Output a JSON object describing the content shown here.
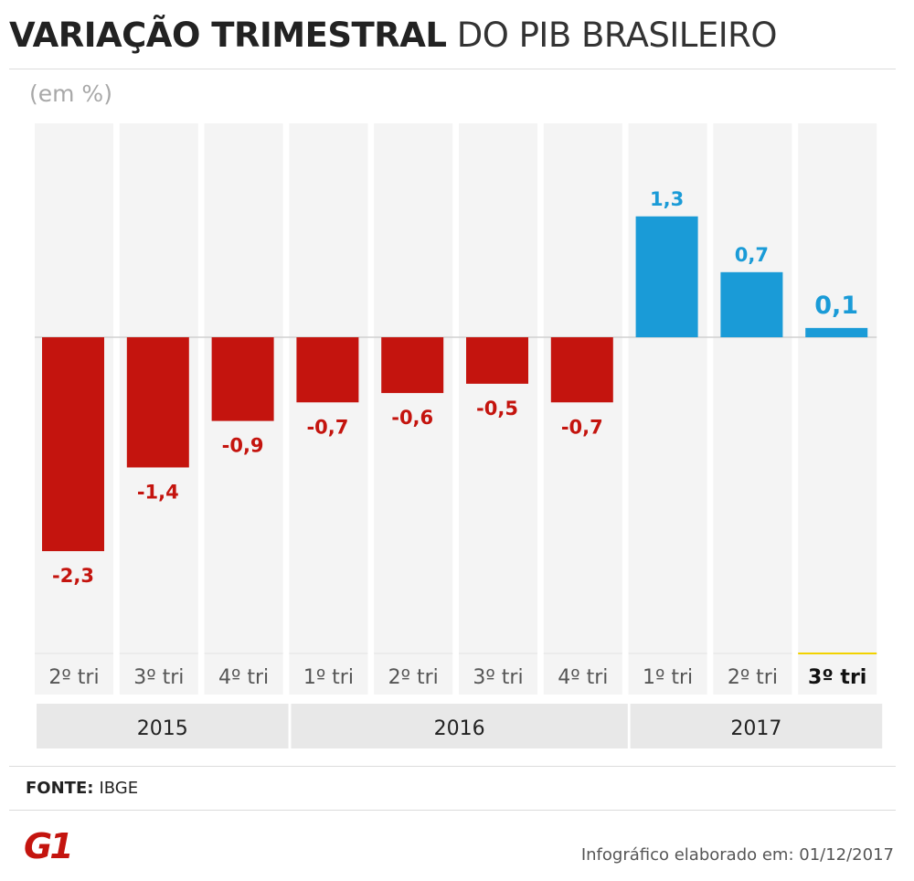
{
  "header": {
    "title_bold": "VARIAÇÃO TRIMESTRAL",
    "title_light": "DO PIB BRASILEIRO",
    "unit": "(em %)"
  },
  "colors": {
    "negative": "#c4140e",
    "positive": "#1a9bd7",
    "column_bg": "#f4f4f4",
    "year_bg": "#e8e8e8",
    "highlight": "#f2d200"
  },
  "chart_data": {
    "type": "bar",
    "title": "VARIAÇÃO TRIMESTRAL DO PIB BRASILEIRO",
    "ylabel": "(em %)",
    "categories": [
      "2º tri",
      "3º tri",
      "4º tri",
      "1º tri",
      "2º tri",
      "3º tri",
      "4º tri",
      "1º tri",
      "2º tri",
      "3º tri"
    ],
    "values": [
      -2.3,
      -1.4,
      -0.9,
      -0.7,
      -0.6,
      -0.5,
      -0.7,
      1.3,
      0.7,
      0.1
    ],
    "value_labels": [
      "-2,3",
      "-1,4",
      "-0,9",
      "-0,7",
      "-0,6",
      "-0,5",
      "-0,7",
      "1,3",
      "0,7",
      "0,1"
    ],
    "years": [
      {
        "label": "2015",
        "count": 3
      },
      {
        "label": "2016",
        "count": 4
      },
      {
        "label": "2017",
        "count": 3
      }
    ],
    "highlight_index": 9,
    "ylim": [
      -3.4,
      2.3
    ],
    "grid": false,
    "legend": "none"
  },
  "footer": {
    "source_label": "FONTE:",
    "source_value": "IBGE",
    "logo_text": "G1",
    "credit": "Infográfico elaborado em: 01/12/2017"
  }
}
